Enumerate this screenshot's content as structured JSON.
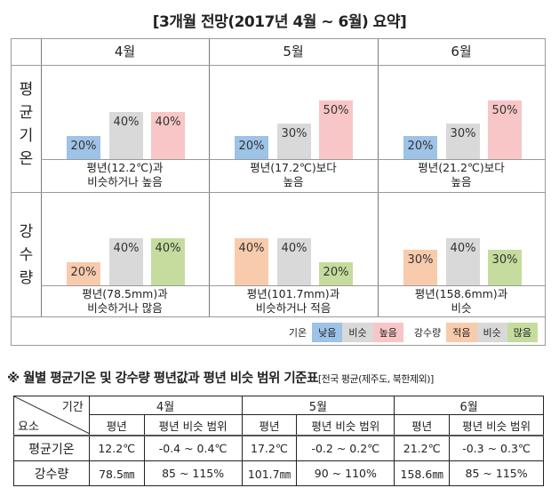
{
  "title": "[3개월  전망(2017년  4월 ~ 6월)  요약]",
  "colors": {
    "low_temp": "#9dc3e6",
    "similar": "#d9d9d9",
    "high_temp": "#f8c6c6",
    "less_rain": "#f8cbad",
    "more_rain": "#c5dc9e"
  },
  "chart_data": [
    {
      "type": "bar",
      "title": "평균기온",
      "row_label": [
        "평",
        "균",
        "기",
        "온"
      ],
      "categories": [
        "낮음",
        "비슷",
        "높음"
      ],
      "unit": "%",
      "ylim": [
        0,
        100
      ],
      "months": [
        {
          "month": "4월",
          "values": [
            20,
            40,
            40
          ],
          "labels": [
            "20%",
            "40%",
            "40%"
          ],
          "caption": [
            "평년(12.2℃)과",
            "비슷하거나 높음"
          ]
        },
        {
          "month": "5월",
          "values": [
            20,
            30,
            50
          ],
          "labels": [
            "20%",
            "30%",
            "50%"
          ],
          "caption": [
            "평년(17.2℃)보다",
            "높음"
          ]
        },
        {
          "month": "6월",
          "values": [
            20,
            30,
            50
          ],
          "labels": [
            "20%",
            "30%",
            "50%"
          ],
          "caption": [
            "평년(21.2℃)보다",
            "높음"
          ]
        }
      ]
    },
    {
      "type": "bar",
      "title": "강수량",
      "row_label": [
        "강",
        "수",
        "량"
      ],
      "categories": [
        "적음",
        "비슷",
        "많음"
      ],
      "unit": "%",
      "ylim": [
        0,
        100
      ],
      "months": [
        {
          "month": "4월",
          "values": [
            20,
            40,
            40
          ],
          "labels": [
            "20%",
            "40%",
            "40%"
          ],
          "caption": [
            "평년(78.5mm)과",
            "비슷하거나 많음"
          ]
        },
        {
          "month": "5월",
          "values": [
            40,
            40,
            20
          ],
          "labels": [
            "40%",
            "40%",
            "20%"
          ],
          "caption": [
            "평년(101.7mm)과",
            "비슷하거나 적음"
          ]
        },
        {
          "month": "6월",
          "values": [
            30,
            40,
            30
          ],
          "labels": [
            "30%",
            "40%",
            "30%"
          ],
          "caption": [
            "평년(158.6mm)과",
            "비슷"
          ]
        }
      ]
    }
  ],
  "legend": {
    "temp_title": "기온",
    "temp_items": [
      "낮음",
      "비슷",
      "높음"
    ],
    "rain_title": "강수량",
    "rain_items": [
      "적음",
      "비슷",
      "많음"
    ]
  },
  "reference": {
    "heading": "※ 월별 평균기온 및 강수량 평년값과 평년 비슷 범위 기준표",
    "note": "[전국 평균(제주도, 북한제외)]",
    "corner_top": "기간",
    "corner_bottom": "요소",
    "months": [
      "4월",
      "5월",
      "6월"
    ],
    "sub_headers": [
      "평년",
      "평년 비슷 범위"
    ],
    "rows": [
      {
        "name": "평균기온",
        "cells": [
          "12.2℃",
          "-0.4 ~ 0.4℃",
          "17.2℃",
          "-0.2 ~ 0.2℃",
          "21.2℃",
          "-0.3 ~ 0.3℃"
        ]
      },
      {
        "name": "강수량",
        "cells": [
          "78.5㎜",
          "85 ~ 115%",
          "101.7㎜",
          "90 ~ 110%",
          "158.6㎜",
          "85 ~ 115%"
        ]
      }
    ]
  }
}
